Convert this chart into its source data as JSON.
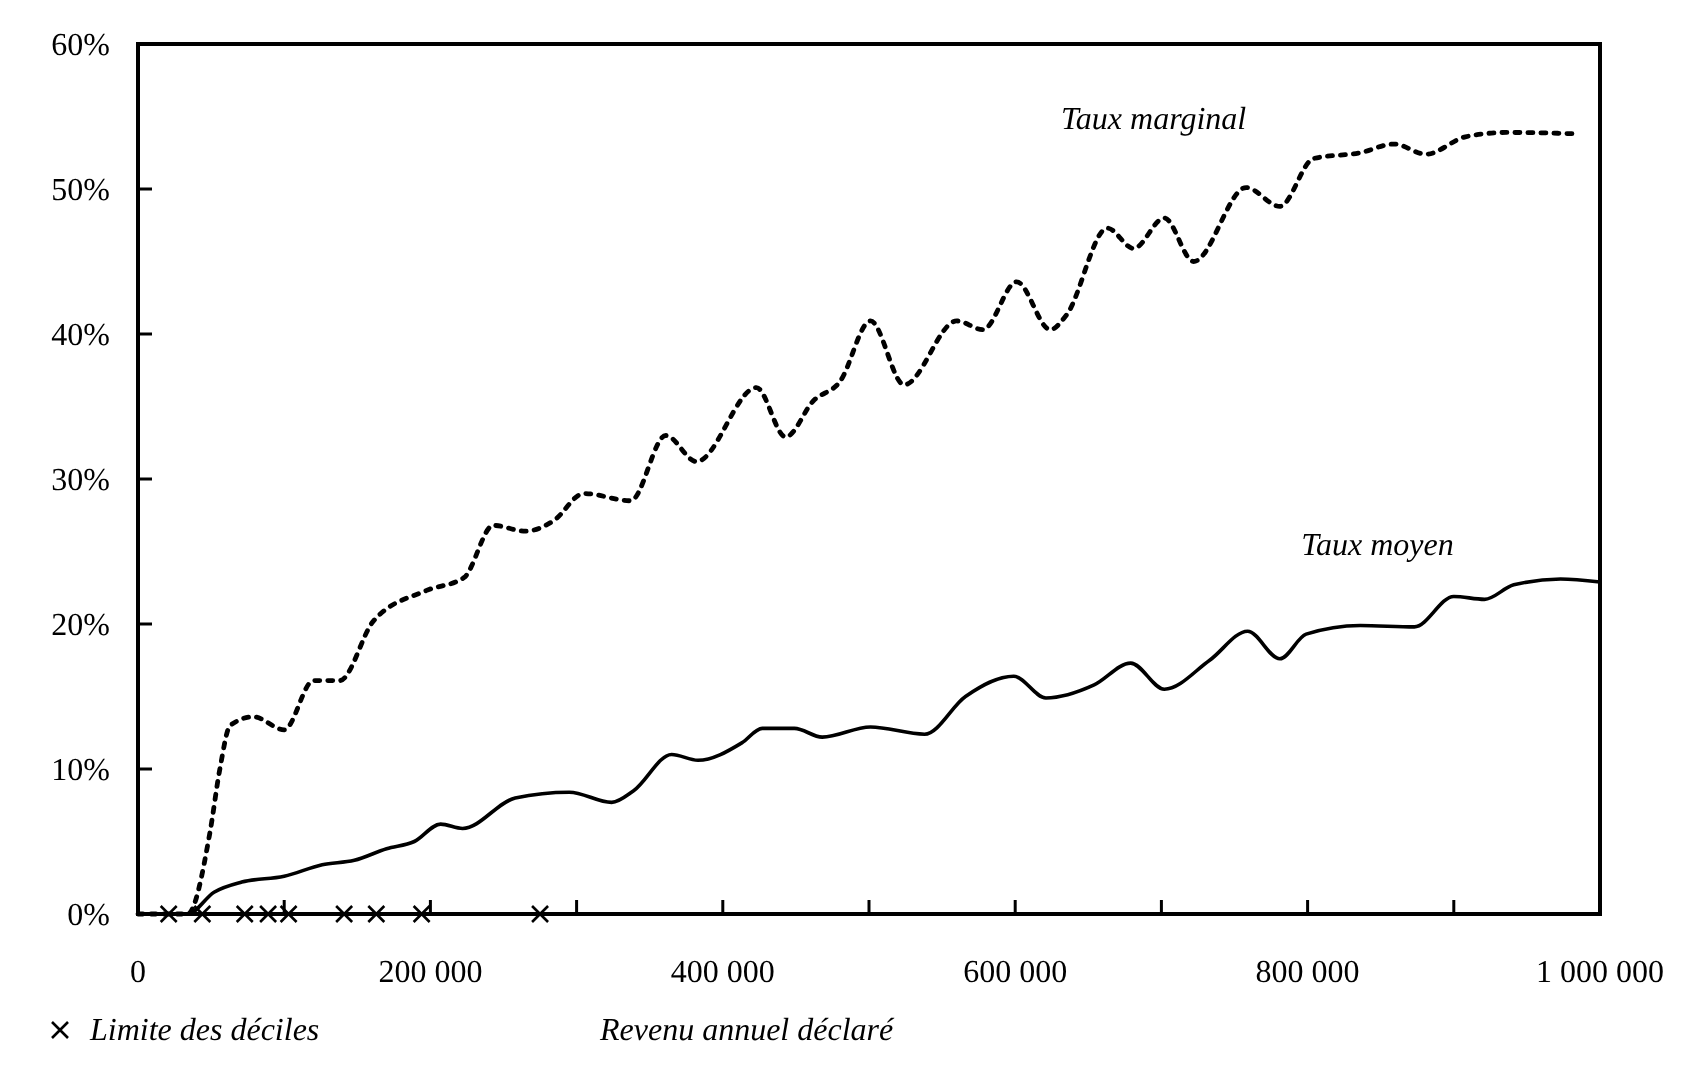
{
  "chart_data": {
    "type": "line",
    "xlabel": "Revenu annuel déclaré",
    "xlim": [
      0,
      1000000
    ],
    "ylim": [
      0,
      60
    ],
    "xticks": [
      0,
      {
        "value": 100000,
        "label": null
      },
      {
        "value": 200000,
        "label": "200 000"
      },
      {
        "value": 300000,
        "label": null
      },
      {
        "value": 400000,
        "label": "400 000"
      },
      {
        "value": 500000,
        "label": null
      },
      {
        "value": 600000,
        "label": "600 000"
      },
      {
        "value": 700000,
        "label": null
      },
      {
        "value": 800000,
        "label": "800 000"
      },
      {
        "value": 900000,
        "label": null
      },
      {
        "value": 1000000,
        "label": "1 000 000"
      }
    ],
    "yticks": [
      {
        "value": 0,
        "label": "0%"
      },
      {
        "value": 10,
        "label": "10%"
      },
      {
        "value": 20,
        "label": "20%"
      },
      {
        "value": 30,
        "label": "30%"
      },
      {
        "value": 40,
        "label": "40%"
      },
      {
        "value": 50,
        "label": "50%"
      },
      {
        "value": 60,
        "label": "60%"
      }
    ],
    "grid": false,
    "legend": "bottom left",
    "series": [
      {
        "name": "Taux marginal",
        "color": "#000000",
        "line_style": "dotted",
        "x": [
          0,
          34000,
          49000,
          56000,
          63000,
          79000,
          100000,
          120000,
          138000,
          161000,
          197000,
          223000,
          243000,
          265000,
          284000,
          305000,
          337000,
          361000,
          382000,
          423000,
          443000,
          462000,
          480000,
          501000,
          524000,
          560000,
          578000,
          601000,
          624000,
          635000,
          663000,
          681000,
          702000,
          722000,
          758000,
          781000,
          804000,
          836000,
          859000,
          881000,
          908000,
          936000,
          986000
        ],
        "values": [
          0,
          0,
          5.5,
          10,
          13,
          13.6,
          12.7,
          16.1,
          16.1,
          20.2,
          22.3,
          23.2,
          26.8,
          26.4,
          27.1,
          29,
          28.5,
          33,
          31.2,
          36.3,
          32.9,
          35.4,
          36.7,
          40.9,
          36.5,
          40.9,
          40.3,
          43.6,
          40.3,
          41.3,
          47.3,
          45.9,
          48,
          45,
          50.1,
          48.8,
          52.1,
          52.5,
          53.1,
          52.4,
          53.6,
          53.9,
          53.8
        ]
      },
      {
        "name": "Taux moyen",
        "color": "#000000",
        "line_style": "solid",
        "x": [
          0,
          34000,
          52000,
          71000,
          100000,
          126000,
          148000,
          170000,
          189000,
          207000,
          222000,
          258000,
          295000,
          324000,
          339000,
          365000,
          383000,
          413000,
          427000,
          449000,
          468000,
          501000,
          538000,
          566000,
          599000,
          621000,
          654000,
          679000,
          702000,
          733000,
          759000,
          781000,
          799000,
          836000,
          873000,
          900000,
          921000,
          941000,
          973000,
          1000000
        ],
        "values": [
          0,
          0,
          1.5,
          2.2,
          2.6,
          3.4,
          3.7,
          4.5,
          5,
          6.2,
          5.9,
          8,
          8.4,
          7.7,
          8.5,
          11,
          10.6,
          11.8,
          12.8,
          12.8,
          12.2,
          12.9,
          12.4,
          15,
          16.4,
          14.9,
          15.8,
          17.3,
          15.5,
          17.5,
          19.5,
          17.6,
          19.3,
          19.9,
          19.8,
          21.9,
          21.7,
          22.7,
          23.1,
          22.9
        ]
      },
      {
        "name": "Limite des déciles",
        "type": "scatter",
        "marker": "cross",
        "color": "#000000",
        "x": [
          21000,
          44000,
          73000,
          89000,
          103000,
          141000,
          163000,
          194000,
          275000
        ],
        "values": [
          0,
          0,
          0,
          0,
          0,
          0,
          0,
          0,
          0
        ]
      }
    ]
  }
}
